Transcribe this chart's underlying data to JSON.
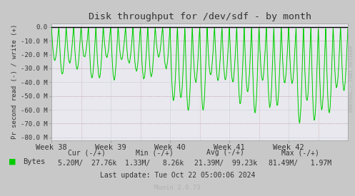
{
  "title": "Disk throughput for /dev/sdf - by month",
  "ylabel": "Pr second read (-) / write (+)",
  "ylim": [
    -82000000,
    2500000
  ],
  "yticks": [
    0.0,
    -10000000,
    -20000000,
    -30000000,
    -40000000,
    -50000000,
    -60000000,
    -70000000,
    -80000000
  ],
  "ytick_labels": [
    "0.0",
    "-10.0 M",
    "-20.0 M",
    "-30.0 M",
    "-40.0 M",
    "-50.0 M",
    "-60.0 M",
    "-70.0 M",
    "-80.0 M"
  ],
  "xtick_labels": [
    "Week 38",
    "Week 39",
    "Week 40",
    "Week 41",
    "Week 42"
  ],
  "xtick_positions": [
    0.0,
    1.0,
    2.0,
    3.0,
    4.0
  ],
  "fig_bg_color": "#c8c8c8",
  "plot_bg_color": "#e8e8ee",
  "outer_bg_color": "#c8c8c8",
  "grid_blue_color": "#b0b0cc",
  "grid_red_color": "#cc9999",
  "line_color": "#00e000",
  "line_color_dark": "#006600",
  "zero_line_color": "#000000",
  "text_color": "#333333",
  "watermark_color": "#b0b0b0",
  "legend_sq_color": "#00cc00",
  "legend_text": "Bytes",
  "cur_header": "Cur (-/+)",
  "min_header": "Min (-/+)",
  "avg_header": "Avg (-/+)",
  "max_header": "Max (-/+)",
  "cur_val": "5.20M/  27.76k",
  "min_val": "1.33M/   8.26k",
  "avg_val": "21.39M/  99.23k",
  "max_val": "81.49M/   1.97M",
  "last_update": "Last update: Tue Oct 22 05:00:06 2024",
  "munin_version": "Munin 2.0.73",
  "watermark": "RRDTOOL / TOBI OETIKER",
  "xlim": [
    0,
    5
  ],
  "n_spikes_per_week": 8,
  "seed": 12
}
